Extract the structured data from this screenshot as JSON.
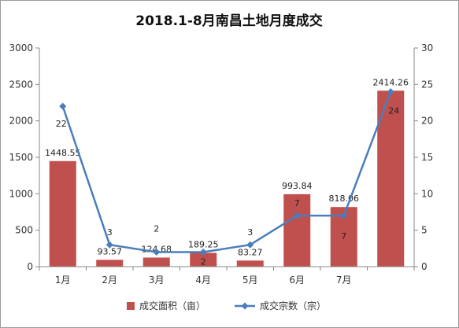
{
  "chart_data": {
    "type": "bar",
    "title": "2018.1-8月南昌土地月度成交",
    "categories": [
      "1月",
      "2月",
      "3月",
      "4月",
      "5月",
      "6月",
      "7月",
      ""
    ],
    "series": [
      {
        "name": "成交面积（亩）",
        "type": "bar",
        "axis": "left",
        "color": "#c0504d",
        "values": [
          1448.55,
          93.57,
          124.68,
          189.25,
          83.27,
          993.84,
          818.06,
          2414.26
        ],
        "labels": [
          "1448.55",
          "93.57",
          "124.68",
          "189.25",
          "83.27",
          "993.84",
          "818.06",
          "2414.26"
        ]
      },
      {
        "name": "成交宗数（宗）",
        "type": "line",
        "axis": "right",
        "color": "#4a7ebb",
        "values": [
          22,
          3,
          2,
          2,
          3,
          7,
          7,
          24
        ],
        "labels": [
          "22",
          "3",
          "2",
          "2",
          "3",
          "7",
          "7",
          "24"
        ]
      }
    ],
    "y_left": {
      "min": 0,
      "max": 3000,
      "step": 500,
      "ticks": [
        "0",
        "500",
        "1000",
        "1500",
        "2000",
        "2500",
        "3000"
      ]
    },
    "y_right": {
      "min": 0,
      "max": 30,
      "step": 5,
      "ticks": [
        "0",
        "5",
        "10",
        "15",
        "20",
        "25",
        "30"
      ]
    },
    "grid": false,
    "legend_position": "bottom"
  }
}
